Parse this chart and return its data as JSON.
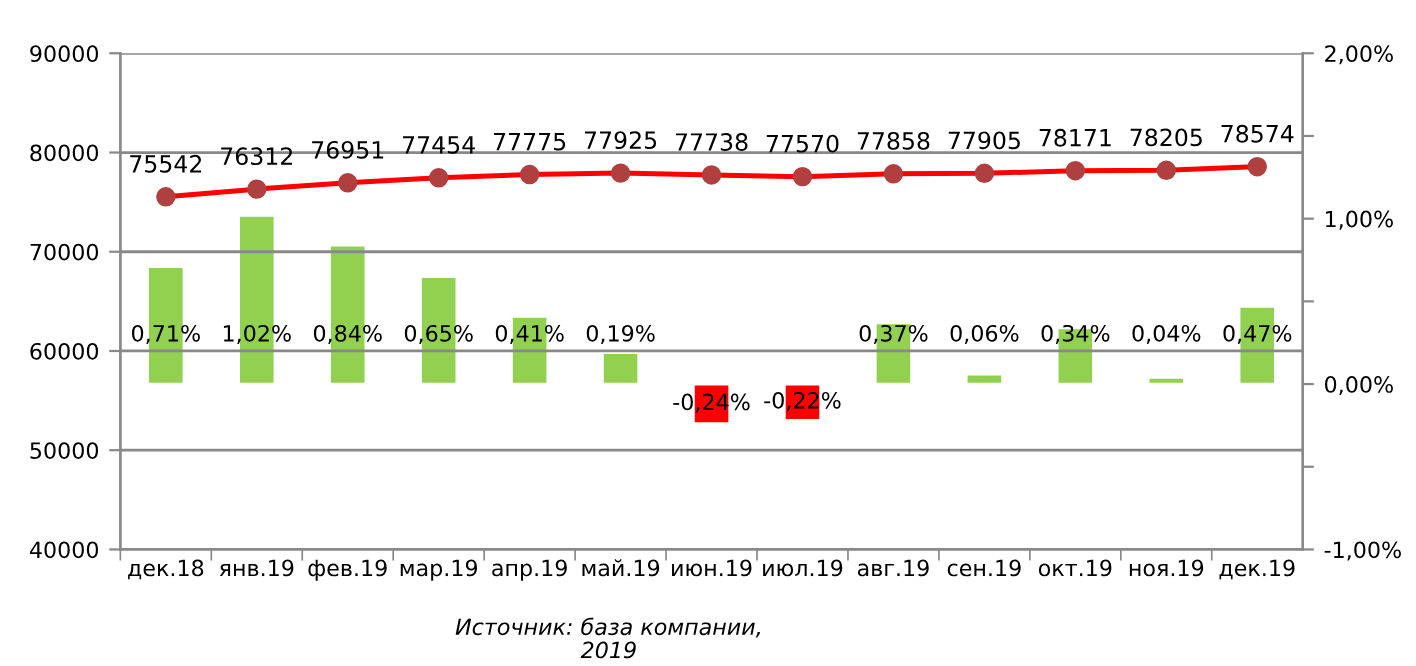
{
  "chart_data": {
    "type": "bar",
    "categories": [
      "дек.18",
      "янв.19",
      "фев.19",
      "мар.19",
      "апр.19",
      "май.19",
      "июн.19",
      "июл.19",
      "авг.19",
      "сен.19",
      "окт.19",
      "ноя.19",
      "дек.19"
    ],
    "series": [
      {
        "axis": "y2",
        "colors": [
          "#92d050",
          "#92d050",
          "#92d050",
          "#92d050",
          "#92d050",
          "#92d050",
          "#ff0000",
          "#ff0000",
          "#92d050",
          "#92d050",
          "#92d050",
          "#92d050",
          "#92d050"
        ],
        "values": [
          0.71,
          1.02,
          0.84,
          0.65,
          0.41,
          0.19,
          -0.24,
          -0.22,
          0.37,
          0.06,
          0.34,
          0.04,
          0.47
        ],
        "value_labels": [
          "0,71%",
          "1,02%",
          "0,84%",
          "0,65%",
          "0,41%",
          "0,19%",
          "-0,24%",
          "-0,22%",
          "0,37%",
          "0,06%",
          "0,34%",
          "0,04%",
          "0,47%"
        ]
      },
      {
        "type": "line",
        "axis": "y",
        "color": "#ff0000",
        "marker": "circle",
        "values": [
          75542,
          76312,
          76951,
          77454,
          77775,
          77925,
          77738,
          77570,
          77858,
          77905,
          78171,
          78205,
          78574
        ],
        "value_labels": [
          "75542",
          "76312",
          "76951",
          "77454",
          "77775",
          "77925",
          "77738",
          "77570",
          "77858",
          "77905",
          "78171",
          "78205",
          "78574"
        ]
      }
    ],
    "ylim": [
      40000,
      90000
    ],
    "yticks": [
      40000,
      50000,
      60000,
      70000,
      80000,
      90000
    ],
    "y2lim": [
      -1,
      2
    ],
    "y2ticks": [
      {
        "value": -1,
        "label": "-1,00%"
      },
      {
        "value": -0.5,
        "label": null
      },
      {
        "value": 0,
        "label": "0,00%"
      },
      {
        "value": 0.5,
        "label": null
      },
      {
        "value": 1,
        "label": "1,00%"
      },
      {
        "value": 1.5,
        "label": null
      },
      {
        "value": 2,
        "label": "2,00%"
      }
    ],
    "grid": "y",
    "annotations": [
      "Источник: база компании,\n2019"
    ]
  }
}
